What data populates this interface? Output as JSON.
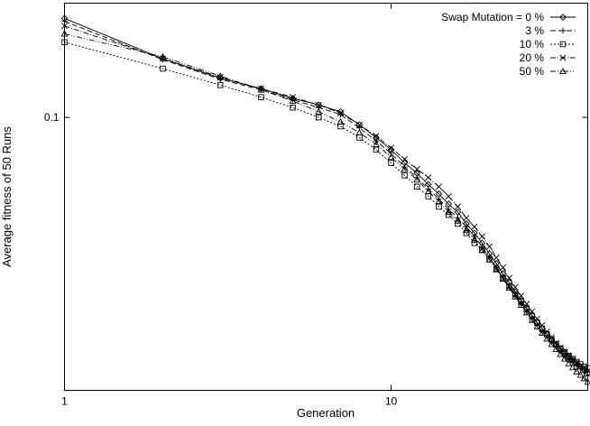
{
  "chart_data": {
    "type": "line",
    "xlabel": "Generation",
    "ylabel": "Average fitness of 50 Runs",
    "xscale": "log",
    "yscale": "log",
    "xlim": [
      1,
      40
    ],
    "ylim": [
      0.0152,
      0.22
    ],
    "x_ticks": [
      {
        "value": 1,
        "label": "1"
      },
      {
        "value": 10,
        "label": "10"
      }
    ],
    "y_ticks": [
      {
        "value": 0.1,
        "label": "0.1"
      }
    ],
    "legend_title": "Swap Mutation = ",
    "legend_position": "top-right",
    "series": [
      {
        "name": "0 %",
        "marker": "diamond",
        "dash": "solid",
        "points": [
          [
            1,
            0.198
          ],
          [
            2,
            0.15
          ],
          [
            3,
            0.131
          ],
          [
            4,
            0.122
          ],
          [
            5,
            0.114
          ],
          [
            6,
            0.109
          ],
          [
            7,
            0.104
          ],
          [
            8,
            0.095
          ],
          [
            9,
            0.087
          ],
          [
            10,
            0.08
          ],
          [
            11,
            0.073
          ],
          [
            12,
            0.068
          ],
          [
            13,
            0.063
          ],
          [
            14,
            0.059
          ],
          [
            15,
            0.055
          ],
          [
            16,
            0.052
          ],
          [
            17,
            0.048
          ],
          [
            18,
            0.045
          ],
          [
            19,
            0.042
          ],
          [
            20,
            0.039
          ],
          [
            21,
            0.0365
          ],
          [
            22,
            0.034
          ],
          [
            23,
            0.032
          ],
          [
            24,
            0.03
          ],
          [
            25,
            0.0283
          ],
          [
            26,
            0.0268
          ],
          [
            27,
            0.0255
          ],
          [
            28,
            0.0243
          ],
          [
            29,
            0.0233
          ],
          [
            30,
            0.0224
          ],
          [
            31,
            0.0216
          ],
          [
            32,
            0.0209
          ],
          [
            33,
            0.0203
          ],
          [
            34,
            0.0197
          ],
          [
            35,
            0.0192
          ],
          [
            36,
            0.0187
          ],
          [
            37,
            0.0183
          ],
          [
            38,
            0.0179
          ],
          [
            39,
            0.0175
          ],
          [
            40,
            0.0171
          ]
        ]
      },
      {
        "name": "3 %",
        "marker": "plus",
        "dash": "long",
        "points": [
          [
            1,
            0.194
          ],
          [
            2,
            0.149
          ],
          [
            3,
            0.13
          ],
          [
            4,
            0.121
          ],
          [
            5,
            0.113
          ],
          [
            6,
            0.107
          ],
          [
            7,
            0.102
          ],
          [
            8,
            0.093
          ],
          [
            9,
            0.085
          ],
          [
            10,
            0.078
          ],
          [
            11,
            0.071
          ],
          [
            12,
            0.066
          ],
          [
            13,
            0.061
          ],
          [
            14,
            0.057
          ],
          [
            15,
            0.053
          ],
          [
            16,
            0.05
          ],
          [
            17,
            0.047
          ],
          [
            18,
            0.044
          ],
          [
            19,
            0.041
          ],
          [
            20,
            0.038
          ],
          [
            21,
            0.0355
          ],
          [
            22,
            0.0332
          ],
          [
            23,
            0.031
          ],
          [
            24,
            0.0292
          ],
          [
            25,
            0.0276
          ],
          [
            26,
            0.0262
          ],
          [
            27,
            0.0249
          ],
          [
            28,
            0.0238
          ],
          [
            29,
            0.0228
          ],
          [
            30,
            0.022
          ],
          [
            31,
            0.0212
          ],
          [
            32,
            0.0205
          ],
          [
            33,
            0.0199
          ],
          [
            34,
            0.0193
          ],
          [
            35,
            0.0188
          ],
          [
            36,
            0.0184
          ],
          [
            37,
            0.018
          ],
          [
            38,
            0.0176
          ],
          [
            39,
            0.0172
          ],
          [
            40,
            0.0168
          ]
        ]
      },
      {
        "name": "10 %",
        "marker": "square",
        "dash": "short",
        "points": [
          [
            1,
            0.168
          ],
          [
            2,
            0.14
          ],
          [
            3,
            0.125
          ],
          [
            4,
            0.115
          ],
          [
            5,
            0.107
          ],
          [
            6,
            0.1
          ],
          [
            7,
            0.094
          ],
          [
            8,
            0.087
          ],
          [
            9,
            0.08
          ],
          [
            10,
            0.073
          ],
          [
            11,
            0.067
          ],
          [
            12,
            0.062
          ],
          [
            13,
            0.058
          ],
          [
            14,
            0.054
          ],
          [
            15,
            0.051
          ],
          [
            16,
            0.048
          ],
          [
            17,
            0.045
          ],
          [
            18,
            0.042
          ],
          [
            19,
            0.04
          ],
          [
            20,
            0.0375
          ],
          [
            21,
            0.0352
          ],
          [
            22,
            0.033
          ],
          [
            23,
            0.0312
          ],
          [
            24,
            0.0295
          ],
          [
            25,
            0.028
          ],
          [
            26,
            0.0266
          ],
          [
            27,
            0.0254
          ],
          [
            28,
            0.0243
          ],
          [
            29,
            0.0233
          ],
          [
            30,
            0.0224
          ],
          [
            31,
            0.0216
          ],
          [
            32,
            0.0209
          ],
          [
            33,
            0.0203
          ],
          [
            34,
            0.0198
          ],
          [
            35,
            0.0193
          ],
          [
            36,
            0.0189
          ],
          [
            37,
            0.0185
          ],
          [
            38,
            0.0182
          ],
          [
            39,
            0.0179
          ],
          [
            40,
            0.0177
          ]
        ]
      },
      {
        "name": "20 %",
        "marker": "cross",
        "dash": "dashdot",
        "points": [
          [
            1,
            0.188
          ],
          [
            2,
            0.15
          ],
          [
            3,
            0.132
          ],
          [
            4,
            0.122
          ],
          [
            5,
            0.115
          ],
          [
            6,
            0.109
          ],
          [
            7,
            0.103
          ],
          [
            8,
            0.095
          ],
          [
            9,
            0.088
          ],
          [
            10,
            0.081
          ],
          [
            11,
            0.075
          ],
          [
            12,
            0.07
          ],
          [
            13,
            0.066
          ],
          [
            14,
            0.062
          ],
          [
            15,
            0.058
          ],
          [
            16,
            0.054
          ],
          [
            17,
            0.05
          ],
          [
            18,
            0.047
          ],
          [
            19,
            0.044
          ],
          [
            20,
            0.041
          ],
          [
            21,
            0.038
          ],
          [
            22,
            0.0355
          ],
          [
            23,
            0.033
          ],
          [
            24,
            0.031
          ],
          [
            25,
            0.0292
          ],
          [
            26,
            0.0276
          ],
          [
            27,
            0.0262
          ],
          [
            28,
            0.0249
          ],
          [
            29,
            0.0238
          ],
          [
            30,
            0.0228
          ],
          [
            31,
            0.0219
          ],
          [
            32,
            0.0211
          ],
          [
            33,
            0.0204
          ],
          [
            34,
            0.0198
          ],
          [
            35,
            0.0193
          ],
          [
            36,
            0.0188
          ],
          [
            37,
            0.0184
          ],
          [
            38,
            0.018
          ],
          [
            39,
            0.0177
          ],
          [
            40,
            0.0174
          ]
        ]
      },
      {
        "name": "50 %",
        "marker": "triangle",
        "dash": "dashdotdot",
        "points": [
          [
            1,
            0.178
          ],
          [
            2,
            0.152
          ],
          [
            3,
            0.133
          ],
          [
            4,
            0.121
          ],
          [
            5,
            0.112
          ],
          [
            6,
            0.104
          ],
          [
            7,
            0.097
          ],
          [
            8,
            0.09
          ],
          [
            9,
            0.083
          ],
          [
            10,
            0.076
          ],
          [
            11,
            0.07
          ],
          [
            12,
            0.065
          ],
          [
            13,
            0.06
          ],
          [
            14,
            0.056
          ],
          [
            15,
            0.052
          ],
          [
            16,
            0.049
          ],
          [
            17,
            0.046
          ],
          [
            18,
            0.043
          ],
          [
            19,
            0.04
          ],
          [
            20,
            0.0375
          ],
          [
            21,
            0.035
          ],
          [
            22,
            0.0328
          ],
          [
            23,
            0.0308
          ],
          [
            24,
            0.029
          ],
          [
            25,
            0.0274
          ],
          [
            26,
            0.026
          ],
          [
            27,
            0.0247
          ],
          [
            28,
            0.0236
          ],
          [
            29,
            0.0226
          ],
          [
            30,
            0.0217
          ],
          [
            31,
            0.0209
          ],
          [
            32,
            0.0202
          ],
          [
            33,
            0.0195
          ],
          [
            34,
            0.0189
          ],
          [
            35,
            0.0183
          ],
          [
            36,
            0.0178
          ],
          [
            37,
            0.0173
          ],
          [
            38,
            0.0169
          ],
          [
            39,
            0.0165
          ],
          [
            40,
            0.0161
          ]
        ]
      }
    ]
  }
}
